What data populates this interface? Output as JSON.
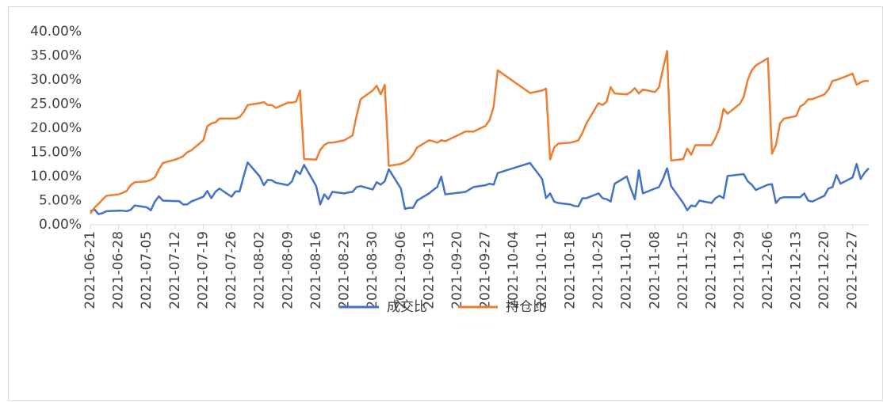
{
  "chart_data": {
    "type": "line",
    "x": [
      "2021-06-21",
      "2021-06-22",
      "2021-06-23",
      "2021-06-24",
      "2021-06-25",
      "2021-06-28",
      "2021-06-29",
      "2021-06-30",
      "2021-07-01",
      "2021-07-02",
      "2021-07-05",
      "2021-07-06",
      "2021-07-07",
      "2021-07-08",
      "2021-07-09",
      "2021-07-12",
      "2021-07-13",
      "2021-07-14",
      "2021-07-15",
      "2021-07-16",
      "2021-07-19",
      "2021-07-20",
      "2021-07-21",
      "2021-07-22",
      "2021-07-23",
      "2021-07-26",
      "2021-07-27",
      "2021-07-28",
      "2021-07-29",
      "2021-07-30",
      "2021-08-02",
      "2021-08-03",
      "2021-08-04",
      "2021-08-05",
      "2021-08-06",
      "2021-08-09",
      "2021-08-10",
      "2021-08-11",
      "2021-08-12",
      "2021-08-13",
      "2021-08-16",
      "2021-08-17",
      "2021-08-18",
      "2021-08-19",
      "2021-08-20",
      "2021-08-23",
      "2021-08-24",
      "2021-08-25",
      "2021-08-26",
      "2021-08-27",
      "2021-08-30",
      "2021-08-31",
      "2021-09-01",
      "2021-09-02",
      "2021-09-03",
      "2021-09-06",
      "2021-09-07",
      "2021-09-08",
      "2021-09-09",
      "2021-09-10",
      "2021-09-13",
      "2021-09-14",
      "2021-09-15",
      "2021-09-16",
      "2021-09-17",
      "2021-09-22",
      "2021-09-23",
      "2021-09-24",
      "2021-09-27",
      "2021-09-28",
      "2021-09-29",
      "2021-09-30",
      "2021-10-08",
      "2021-10-11",
      "2021-10-12",
      "2021-10-13",
      "2021-10-14",
      "2021-10-15",
      "2021-10-18",
      "2021-10-19",
      "2021-10-20",
      "2021-10-21",
      "2021-10-22",
      "2021-10-25",
      "2021-10-26",
      "2021-10-27",
      "2021-10-28",
      "2021-10-29",
      "2021-11-01",
      "2021-11-02",
      "2021-11-03",
      "2021-11-04",
      "2021-11-05",
      "2021-11-08",
      "2021-11-09",
      "2021-11-10",
      "2021-11-11",
      "2021-11-12",
      "2021-11-15",
      "2021-11-16",
      "2021-11-17",
      "2021-11-18",
      "2021-11-19",
      "2021-11-22",
      "2021-11-23",
      "2021-11-24",
      "2021-11-25",
      "2021-11-26",
      "2021-11-29",
      "2021-11-30",
      "2021-12-01",
      "2021-12-02",
      "2021-12-03",
      "2021-12-06",
      "2021-12-07",
      "2021-12-08",
      "2021-12-09",
      "2021-12-10",
      "2021-12-13",
      "2021-12-14",
      "2021-12-15",
      "2021-12-16",
      "2021-12-17",
      "2021-12-20",
      "2021-12-21",
      "2021-12-22",
      "2021-12-23",
      "2021-12-24",
      "2021-12-27",
      "2021-12-28",
      "2021-12-29",
      "2021-12-30",
      "2021-12-31"
    ],
    "series": [
      {
        "name": "成交比",
        "color": "#4472c4",
        "values": [
          2.8,
          3.2,
          2.2,
          2.4,
          2.8,
          2.9,
          2.9,
          2.8,
          3.1,
          4.0,
          3.6,
          3.0,
          4.8,
          5.9,
          5.0,
          4.9,
          4.9,
          4.2,
          4.2,
          4.8,
          5.8,
          7.0,
          5.5,
          6.8,
          7.5,
          5.8,
          6.9,
          6.9,
          10.0,
          12.9,
          10.0,
          8.2,
          9.3,
          9.2,
          8.7,
          8.2,
          9.0,
          11.2,
          10.5,
          12.4,
          8.0,
          4.2,
          6.3,
          5.3,
          6.8,
          6.5,
          6.7,
          6.8,
          7.8,
          8.0,
          7.3,
          8.8,
          8.3,
          9.0,
          11.5,
          7.5,
          3.3,
          3.5,
          3.5,
          5.0,
          6.5,
          7.2,
          7.8,
          10.0,
          6.3,
          6.8,
          7.3,
          7.8,
          8.2,
          8.5,
          8.3,
          10.7,
          12.8,
          9.5,
          5.5,
          6.5,
          4.8,
          4.5,
          4.2,
          3.9,
          3.8,
          5.5,
          5.5,
          6.5,
          5.5,
          5.3,
          4.8,
          8.5,
          10.0,
          7.5,
          5.3,
          11.3,
          6.5,
          7.5,
          7.8,
          9.5,
          11.7,
          8.0,
          4.5,
          3.0,
          4.0,
          3.8,
          5.0,
          4.5,
          5.5,
          6.0,
          5.5,
          10.1,
          10.4,
          10.5,
          9.0,
          8.3,
          7.2,
          8.3,
          8.4,
          4.5,
          5.5,
          5.7,
          5.7,
          5.7,
          6.5,
          5.0,
          4.8,
          6.0,
          7.5,
          7.8,
          10.3,
          8.5,
          9.8,
          12.6,
          9.5,
          10.8,
          11.7
        ]
      },
      {
        "name": "持仓比",
        "color": "#ed7d31",
        "values": [
          2.3,
          3.5,
          4.3,
          5.2,
          6.0,
          6.3,
          6.6,
          7.0,
          8.2,
          8.8,
          9.0,
          9.3,
          9.8,
          11.5,
          12.8,
          13.5,
          13.8,
          14.2,
          15.0,
          15.4,
          17.5,
          20.4,
          21.0,
          21.2,
          22.0,
          22.0,
          22.0,
          22.3,
          23.3,
          24.8,
          25.2,
          25.4,
          24.8,
          24.8,
          24.2,
          25.3,
          25.3,
          25.5,
          27.8,
          13.6,
          13.5,
          15.5,
          16.5,
          17.0,
          17.0,
          17.5,
          18.0,
          18.5,
          22.5,
          26.0,
          27.8,
          28.8,
          27.0,
          29.0,
          12.2,
          12.6,
          13.0,
          13.5,
          14.5,
          16.0,
          17.5,
          17.3,
          17.0,
          17.5,
          17.3,
          19.3,
          19.3,
          19.3,
          20.5,
          21.7,
          24.5,
          32.0,
          27.3,
          27.8,
          28.2,
          13.5,
          16.0,
          16.8,
          17.0,
          17.2,
          17.5,
          19.0,
          21.0,
          25.2,
          24.8,
          25.5,
          28.5,
          27.2,
          27.0,
          27.5,
          28.3,
          27.2,
          28.0,
          27.5,
          28.5,
          32.3,
          36.0,
          13.3,
          13.6,
          15.8,
          14.5,
          16.5,
          16.5,
          16.5,
          18.0,
          20.0,
          24.0,
          23.0,
          25.0,
          26.5,
          30.0,
          32.0,
          33.0,
          34.5,
          14.7,
          16.5,
          21.0,
          22.0,
          22.5,
          24.5,
          25.0,
          26.0,
          26.0,
          27.0,
          28.0,
          29.8,
          30.0,
          30.3,
          31.3,
          29.0,
          29.5,
          29.8,
          29.8
        ]
      }
    ],
    "xlim": [
      "2021-06-21",
      "2021-12-31"
    ],
    "xticks": [
      "2021-06-21",
      "2021-06-28",
      "2021-07-05",
      "2021-07-12",
      "2021-07-19",
      "2021-07-26",
      "2021-08-02",
      "2021-08-09",
      "2021-08-16",
      "2021-08-23",
      "2021-08-30",
      "2021-09-06",
      "2021-09-13",
      "2021-09-20",
      "2021-09-27",
      "2021-10-04",
      "2021-10-11",
      "2021-10-18",
      "2021-10-25",
      "2021-11-01",
      "2021-11-08",
      "2021-11-15",
      "2021-11-22",
      "2021-11-29",
      "2021-12-06",
      "2021-12-13",
      "2021-12-20",
      "2021-12-27"
    ],
    "ylim": [
      0,
      40
    ],
    "yticks": [
      {
        "value": 0,
        "label": "0.00%"
      },
      {
        "value": 5,
        "label": "5.00%"
      },
      {
        "value": 10,
        "label": "10.00%"
      },
      {
        "value": 15,
        "label": "15.00%"
      },
      {
        "value": 20,
        "label": "20.00%"
      },
      {
        "value": 25,
        "label": "25.00%"
      },
      {
        "value": 30,
        "label": "30.00%"
      },
      {
        "value": 35,
        "label": "35.00%"
      },
      {
        "value": 40,
        "label": "40.00%"
      }
    ],
    "grid": false,
    "legend": "bottom"
  }
}
